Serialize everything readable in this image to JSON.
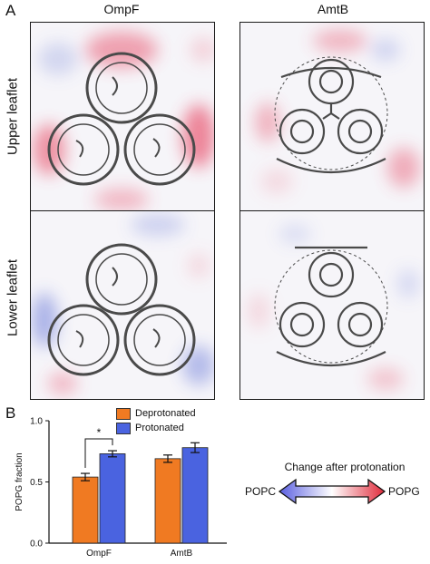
{
  "figure": {
    "panel_a_letter": "A",
    "panel_b_letter": "B",
    "columns": [
      "OmpF",
      "AmtB"
    ],
    "rows": [
      "Upper leaflet",
      "Lower leaflet"
    ],
    "colorbar": {
      "caption": "Change after protonation",
      "left_label": "POPC",
      "right_label": "POPG",
      "left_color": "#5a5fe0",
      "right_color": "#e02a3a"
    },
    "map_colors": {
      "enriched": "#e8506a",
      "depleted": "#6a7ad8",
      "protein": "#4a4a4a"
    }
  },
  "chart_data": {
    "type": "bar",
    "categories": [
      "OmpF",
      "AmtB"
    ],
    "series": [
      {
        "name": "Deprotonated",
        "color": "#f07a22",
        "values": [
          0.54,
          0.69
        ],
        "errors": [
          0.03,
          0.03
        ]
      },
      {
        "name": "Protonated",
        "color": "#4a63e0",
        "values": [
          0.73,
          0.78
        ],
        "errors": [
          0.025,
          0.04
        ]
      }
    ],
    "ylabel": "POPG fraction",
    "ylim": [
      0.0,
      1.0
    ],
    "yticks": [
      "0.0",
      "0.5",
      "1.0"
    ],
    "significance": {
      "label": "*"
    },
    "legend": "top-right"
  }
}
